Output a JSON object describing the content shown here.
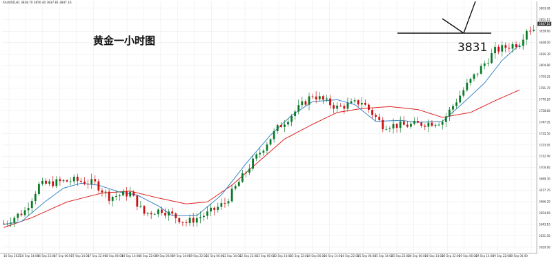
{
  "header": {
    "symbol_text": "XAUUSD,H1  3838.70  3850.40  3837.81  3847.16"
  },
  "annotations": {
    "title": "黄金一小时图",
    "level_label": "3831",
    "level_value": 3831
  },
  "colors": {
    "bull": "#0a7a2a",
    "bear": "#cc1111",
    "ma_fast": "#3a86c8",
    "ma_slow": "#e02020",
    "grid": "#e8e8e8",
    "axis": "#999999"
  },
  "chart_data": {
    "type": "candlestick",
    "symbol": "XAUUSD",
    "timeframe": "H1",
    "ohlc_header": {
      "open": 3838.7,
      "high": 3850.4,
      "low": 3837.81,
      "close": 3847.16
    },
    "ylim": [
      3615,
      3870
    ],
    "y_ticks": [
      3863.08,
      3851.15,
      3839.6,
      3828.0,
      3816.3,
      3804.8,
      3793.25,
      3781.7,
      3770.2,
      3758.6,
      3747.05,
      3735.5,
      3723.95,
      3712.4,
      3700.85,
      3689.3,
      3677.7,
      3666.2,
      3654.6,
      3643.1,
      3631.5,
      3620.0
    ],
    "x_labels": [
      "16 Sep 2025",
      "16 Sep 14:00",
      "16 Sep 22:00",
      "17 Sep 06:00",
      "17 Sep 14:00",
      "17 Sep 22:00",
      "18 Sep 06:00",
      "18 Sep 14:00",
      "18 Sep 22:00",
      "19 Sep 06:00",
      "19 Sep 14:00",
      "19 Sep 22:00",
      "22 Sep 06:00",
      "22 Sep 14:00",
      "22 Sep 22:00",
      "23 Sep 06:00",
      "23 Sep 14:00",
      "23 Sep 22:00",
      "24 Sep 06:00",
      "24 Sep 14:00",
      "24 Sep 22:00",
      "25 Sep 06:00",
      "25 Sep 14:00",
      "25 Sep 22:00",
      "26 Sep 06:00",
      "26 Sep 14:00",
      "26 Sep 22:00",
      "29 Sep 06:00",
      "29 Sep 14:00",
      "29 Sep 22:00",
      "30 Sep 06:00"
    ],
    "bars": 152,
    "anchors": [
      [
        0,
        3644
      ],
      [
        6,
        3657
      ],
      [
        10,
        3683
      ],
      [
        15,
        3686
      ],
      [
        20,
        3688
      ],
      [
        26,
        3685
      ],
      [
        30,
        3671
      ],
      [
        36,
        3675
      ],
      [
        40,
        3654
      ],
      [
        45,
        3658
      ],
      [
        52,
        3645
      ],
      [
        58,
        3654
      ],
      [
        63,
        3665
      ],
      [
        70,
        3702
      ],
      [
        78,
        3741
      ],
      [
        88,
        3775
      ],
      [
        95,
        3762
      ],
      [
        102,
        3768
      ],
      [
        108,
        3744
      ],
      [
        115,
        3744
      ],
      [
        125,
        3748
      ],
      [
        132,
        3785
      ],
      [
        140,
        3820
      ],
      [
        147,
        3828
      ],
      [
        149,
        3842
      ]
    ],
    "ma_fast": [
      [
        0,
        3643
      ],
      [
        5,
        3646
      ],
      [
        12,
        3667
      ],
      [
        17,
        3680
      ],
      [
        22,
        3685
      ],
      [
        27,
        3683
      ],
      [
        33,
        3676
      ],
      [
        38,
        3673
      ],
      [
        44,
        3662
      ],
      [
        48,
        3652
      ],
      [
        55,
        3652
      ],
      [
        62,
        3673
      ],
      [
        69,
        3705
      ],
      [
        76,
        3734
      ],
      [
        82,
        3754
      ],
      [
        88,
        3768
      ],
      [
        95,
        3770
      ],
      [
        100,
        3765
      ],
      [
        106,
        3748
      ],
      [
        113,
        3749
      ],
      [
        118,
        3747
      ],
      [
        125,
        3748
      ],
      [
        131,
        3767
      ],
      [
        137,
        3787
      ],
      [
        142,
        3810
      ],
      [
        147,
        3826
      ]
    ],
    "ma_slow": [
      [
        0,
        3640
      ],
      [
        8,
        3650
      ],
      [
        18,
        3666
      ],
      [
        28,
        3675
      ],
      [
        36,
        3677
      ],
      [
        44,
        3670
      ],
      [
        52,
        3664
      ],
      [
        58,
        3666
      ],
      [
        65,
        3683
      ],
      [
        72,
        3705
      ],
      [
        80,
        3730
      ],
      [
        88,
        3745
      ],
      [
        95,
        3757
      ],
      [
        102,
        3761
      ],
      [
        110,
        3763
      ],
      [
        118,
        3760
      ],
      [
        125,
        3752
      ],
      [
        133,
        3757
      ],
      [
        140,
        3769
      ],
      [
        147,
        3780
      ]
    ]
  }
}
